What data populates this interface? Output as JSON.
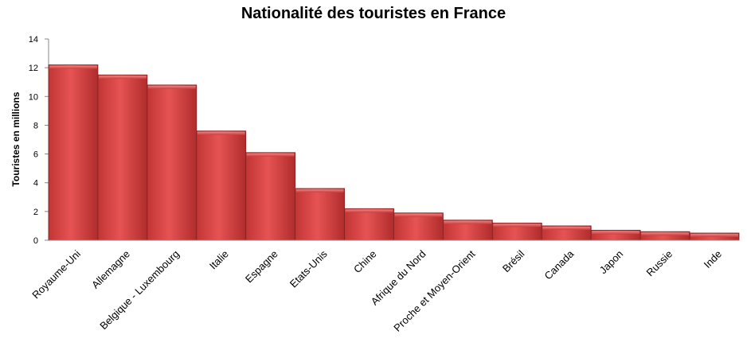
{
  "chart_data": {
    "type": "bar",
    "title": "Nationalité des touristes en France",
    "xlabel": "",
    "ylabel": "Touristes en millions",
    "ylim": [
      0,
      14
    ],
    "yticks": [
      0,
      2,
      4,
      6,
      8,
      10,
      12,
      14
    ],
    "categories": [
      "Royaume-Uni",
      "Allemagne",
      "Belgique - Luxembourg",
      "Italie",
      "Espagne",
      "Etats-Unis",
      "Chine",
      "Afrique du Nord",
      "Proche et Moyen-Orient",
      "Brésil",
      "Canada",
      "Japon",
      "Russie",
      "Inde"
    ],
    "values": [
      12.2,
      11.5,
      10.8,
      7.6,
      6.1,
      3.6,
      2.2,
      1.9,
      1.4,
      1.2,
      1.0,
      0.7,
      0.6,
      0.5
    ],
    "bar_color": "#d94545",
    "grid": false,
    "legend": "none"
  }
}
